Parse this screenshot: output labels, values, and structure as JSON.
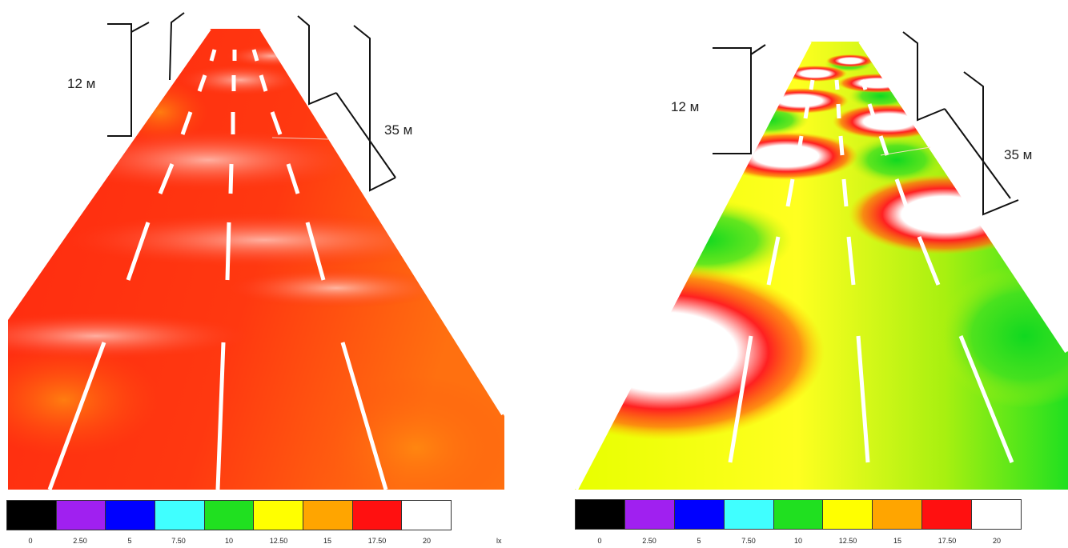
{
  "legend": {
    "colors": [
      "#000000",
      "#a020f0",
      "#0000ff",
      "#40ffff",
      "#20e020",
      "#ffff00",
      "#ffa500",
      "#ff1010",
      "#ffffff"
    ],
    "ticks": [
      "0",
      "2.50",
      "5",
      "7.50",
      "10",
      "12.50",
      "15",
      "17.50",
      "20"
    ],
    "unit": "lx"
  },
  "left_panel": {
    "height_label": "12 м",
    "spacing_label": "35 м"
  },
  "right_panel": {
    "height_label": "12 м",
    "spacing_label": "35 м"
  }
}
